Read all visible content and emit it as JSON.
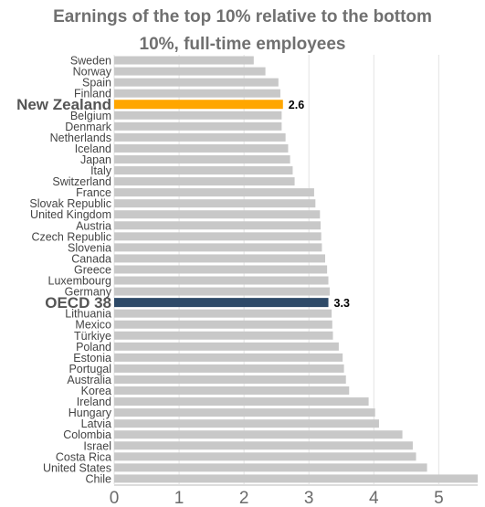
{
  "chart_data": {
    "type": "bar",
    "orientation": "horizontal",
    "title_lines": [
      "Earnings of the top 10% relative to the bottom",
      "10%, full-time employees"
    ],
    "categories": [
      "Sweden",
      "Norway",
      "Spain",
      "Finland",
      "New Zealand",
      "Belgium",
      "Denmark",
      "Netherlands",
      "Iceland",
      "Japan",
      "Italy",
      "Switzerland",
      "France",
      "Slovak Republic",
      "United Kingdom",
      "Austria",
      "Czech Republic",
      "Slovenia",
      "Canada",
      "Greece",
      "Luxembourg",
      "Germany",
      "OECD 38",
      "Lithuania",
      "Mexico",
      "Türkiye",
      "Poland",
      "Estonia",
      "Portugal",
      "Australia",
      "Korea",
      "Ireland",
      "Hungary",
      "Latvia",
      "Colombia",
      "Israel",
      "Costa Rica",
      "United States",
      "Chile"
    ],
    "values": [
      2.15,
      2.33,
      2.53,
      2.56,
      2.6,
      2.58,
      2.58,
      2.64,
      2.68,
      2.71,
      2.75,
      2.78,
      3.08,
      3.1,
      3.17,
      3.18,
      3.19,
      3.2,
      3.25,
      3.28,
      3.3,
      3.32,
      3.3,
      3.35,
      3.36,
      3.37,
      3.46,
      3.52,
      3.54,
      3.57,
      3.62,
      3.92,
      4.02,
      4.08,
      4.44,
      4.6,
      4.65,
      4.82,
      5.6
    ],
    "highlights": [
      {
        "category": "New Zealand",
        "color": "#FFA600",
        "label": "2.6"
      },
      {
        "category": "OECD 38",
        "color": "#2E4A68",
        "label": "3.3"
      }
    ],
    "bar_color": "#C8C8C8",
    "xlim": [
      0,
      5.6
    ],
    "xticks": [
      "0",
      "1",
      "2",
      "3",
      "4",
      "5"
    ],
    "grid": true
  }
}
